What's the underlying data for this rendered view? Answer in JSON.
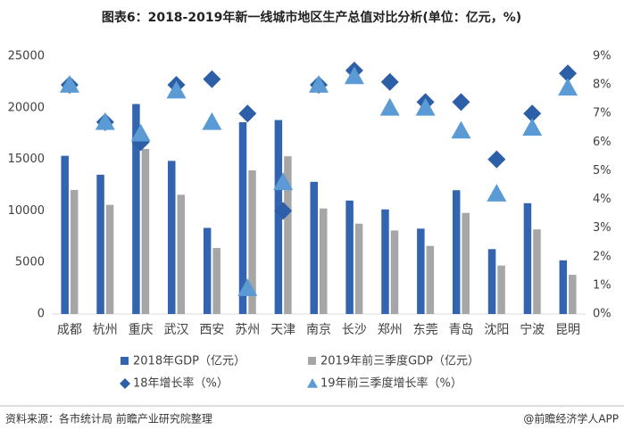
{
  "chart_data": {
    "type": "bar",
    "title": "图表6：2018-2019年新一线城市地区生产总值对比分析(单位：亿元，%)",
    "categories": [
      "成都",
      "杭州",
      "重庆",
      "武汉",
      "西安",
      "苏州",
      "天津",
      "南京",
      "长沙",
      "郑州",
      "东莞",
      "青岛",
      "沈阳",
      "宁波",
      "昆明"
    ],
    "series": [
      {
        "name": "2018年GDP（亿元）",
        "type": "bar",
        "color": "#3264b0",
        "values": [
          15343,
          13509,
          20363,
          14847,
          8350,
          18597,
          18810,
          12820,
          11003,
          10143,
          8279,
          12001,
          6292,
          10746,
          5206
        ]
      },
      {
        "name": "2019年前三季度GDP（亿元）",
        "type": "bar",
        "color": "#a6a6a6",
        "values": [
          12024,
          10584,
          16003,
          11563,
          6400,
          13927,
          15300,
          10230,
          8760,
          8100,
          6600,
          9800,
          4700,
          8200,
          3800
        ]
      },
      {
        "name": "18年增长率（%）",
        "type": "scatter",
        "marker": "diamond",
        "axis": "y2",
        "color": "#2d5fa8",
        "values": [
          8.0,
          6.7,
          6.0,
          8.0,
          8.2,
          7.0,
          3.6,
          8.0,
          8.5,
          8.1,
          7.4,
          7.4,
          5.4,
          7.0,
          8.4
        ]
      },
      {
        "name": "19年前三季度增长率（%）",
        "type": "scatter",
        "marker": "triangle",
        "axis": "y2",
        "color": "#5b9bd5",
        "values": [
          8.0,
          6.7,
          6.3,
          7.8,
          6.7,
          0.9,
          4.6,
          8.0,
          8.3,
          7.2,
          7.2,
          6.4,
          4.2,
          6.5,
          7.9
        ]
      }
    ],
    "ylim": [
      0,
      25000
    ],
    "yticks": [
      0,
      5000,
      10000,
      15000,
      20000,
      25000
    ],
    "y2lim": [
      0,
      9
    ],
    "y2ticks": [
      {
        "value": 0,
        "label": "0%"
      },
      {
        "value": 1,
        "label": "1%"
      },
      {
        "value": 2,
        "label": "2%"
      },
      {
        "value": 3,
        "label": "3%"
      },
      {
        "value": 4,
        "label": "4%"
      },
      {
        "value": 5,
        "label": "5%"
      },
      {
        "value": 6,
        "label": "6%"
      },
      {
        "value": 7,
        "label": "7%"
      },
      {
        "value": 8,
        "label": "8%"
      },
      {
        "value": 9,
        "label": "9%"
      }
    ],
    "grid": false,
    "source": "资料来源：各市统计局 前瞻产业研究院整理",
    "credit": "@前瞻经济学人APP"
  }
}
